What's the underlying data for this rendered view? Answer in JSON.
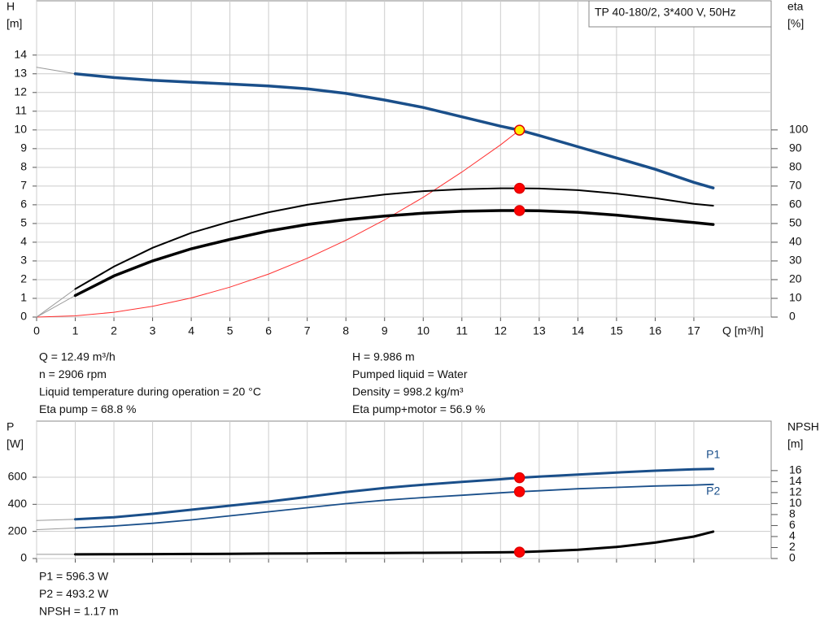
{
  "chart_data": [
    {
      "type": "line",
      "title": "TP 40-180/2, 3*400 V, 50Hz",
      "y_label": "H",
      "y_unit": "[m]",
      "y2_label": "eta",
      "y2_unit": "[%]",
      "x_label": "Q [m³/h]",
      "xlim": [
        0,
        19
      ],
      "xticks": [
        0,
        1,
        2,
        3,
        4,
        5,
        6,
        7,
        8,
        9,
        10,
        11,
        12,
        13,
        14,
        15,
        16,
        17
      ],
      "ylim": [
        0,
        16.9
      ],
      "yticks": [
        0,
        1,
        2,
        3,
        4,
        5,
        6,
        7,
        8,
        9,
        10,
        11,
        12,
        13,
        14
      ],
      "y2lim": [
        0,
        169
      ],
      "y2ticks": [
        0,
        10,
        20,
        30,
        40,
        50,
        60,
        70,
        80,
        90,
        100
      ],
      "grid": true,
      "xtick_labels": true,
      "operating_q": 12.49,
      "series": [
        {
          "color": "#999999",
          "width": 1,
          "x": [
            0,
            1
          ],
          "values": [
            13.35,
            13.0
          ]
        },
        {
          "color": "#1a4f8a",
          "width": 3.5,
          "marker_color": "#ffee00",
          "x": [
            1,
            2,
            3,
            4,
            5,
            6,
            7,
            8,
            9,
            10,
            11,
            12,
            12.49,
            13,
            14,
            15,
            16,
            17,
            17.5
          ],
          "values": [
            13.0,
            12.8,
            12.65,
            12.55,
            12.45,
            12.35,
            12.2,
            11.95,
            11.6,
            11.2,
            10.7,
            10.2,
            9.986,
            9.7,
            9.1,
            8.5,
            7.9,
            7.2,
            6.9
          ]
        },
        {
          "color": "#ff3030",
          "width": 1,
          "x": [
            0,
            1,
            2,
            3,
            4,
            5,
            6,
            7,
            8,
            9,
            10,
            11,
            12,
            12.49
          ],
          "values": [
            0,
            0.064,
            0.256,
            0.576,
            1.02,
            1.6,
            2.3,
            3.14,
            4.1,
            5.19,
            6.4,
            7.75,
            9.2,
            9.986
          ]
        },
        {
          "color": "#999999",
          "width": 1,
          "axis": "y2",
          "x": [
            0,
            1
          ],
          "values": [
            0,
            15
          ]
        },
        {
          "color": "#999999",
          "width": 1,
          "axis": "y2",
          "x": [
            0,
            1
          ],
          "values": [
            0,
            11.5
          ]
        },
        {
          "color": "#000000",
          "width": 2,
          "axis": "y2",
          "marker_color": "#ff0000",
          "x": [
            1,
            2,
            3,
            4,
            5,
            6,
            7,
            8,
            9,
            10,
            11,
            12,
            12.49,
            13,
            14,
            15,
            16,
            17,
            17.5
          ],
          "values": [
            15,
            27,
            37,
            45,
            51,
            56,
            60,
            63,
            65.5,
            67.3,
            68.3,
            68.8,
            68.8,
            68.7,
            67.8,
            66,
            63.5,
            60.5,
            59.5
          ]
        },
        {
          "color": "#000000",
          "width": 3.5,
          "axis": "y2",
          "marker_color": "#ff0000",
          "x": [
            1,
            2,
            3,
            4,
            5,
            6,
            7,
            8,
            9,
            10,
            11,
            12,
            12.49,
            13,
            14,
            15,
            16,
            17,
            17.5
          ],
          "values": [
            11.5,
            22,
            30,
            36.5,
            41.5,
            46,
            49.5,
            52,
            54,
            55.5,
            56.5,
            56.9,
            56.9,
            56.8,
            56,
            54.5,
            52.5,
            50.5,
            49.5
          ]
        }
      ]
    },
    {
      "type": "line",
      "y_label": "P",
      "y_unit": "[W]",
      "y2_label": "NPSH",
      "y2_unit": "[m]",
      "xlim": [
        0,
        19
      ],
      "xticks": [
        0,
        1,
        2,
        3,
        4,
        5,
        6,
        7,
        8,
        9,
        10,
        11,
        12,
        13,
        14,
        15,
        16,
        17
      ],
      "ylim": [
        0,
        1014
      ],
      "yticks": [
        0,
        200,
        400,
        600
      ],
      "y2lim": [
        0,
        25
      ],
      "y2ticks": [
        0,
        2,
        4,
        6,
        8,
        10,
        12,
        14,
        16
      ],
      "grid": true,
      "xtick_labels": false,
      "operating_q": 12.49,
      "series": [
        {
          "color": "#999999",
          "width": 1,
          "x": [
            0,
            1
          ],
          "values": [
            280,
            290
          ]
        },
        {
          "color": "#1a4f8a",
          "width": 3,
          "marker_color": "#ff0000",
          "x": [
            1,
            2,
            3,
            4,
            5,
            6,
            7,
            8,
            9,
            10,
            11,
            12,
            12.49,
            13,
            14,
            15,
            16,
            17,
            17.5
          ],
          "values": [
            290,
            305,
            330,
            360,
            390,
            420,
            455,
            490,
            520,
            545,
            565,
            585,
            596.3,
            605,
            620,
            635,
            648,
            658,
            662
          ]
        },
        {
          "color": "#999999",
          "width": 1,
          "x": [
            0,
            1
          ],
          "values": [
            213,
            225
          ]
        },
        {
          "color": "#1a4f8a",
          "width": 1.8,
          "marker_color": "#ff0000",
          "x": [
            1,
            2,
            3,
            4,
            5,
            6,
            7,
            8,
            9,
            10,
            11,
            12,
            12.49,
            13,
            14,
            15,
            16,
            17,
            17.5
          ],
          "values": [
            225,
            240,
            260,
            285,
            315,
            345,
            375,
            405,
            430,
            450,
            467,
            485,
            493.2,
            500,
            515,
            525,
            535,
            542,
            547
          ]
        },
        {
          "color": "#999999",
          "width": 1,
          "axis": "y2",
          "x": [
            0,
            1
          ],
          "values": [
            0.75,
            0.75
          ]
        },
        {
          "color": "#000000",
          "width": 3,
          "axis": "y2",
          "marker_color": "#ff0000",
          "x": [
            1,
            2,
            3,
            4,
            5,
            6,
            7,
            8,
            9,
            10,
            11,
            12,
            12.49,
            13,
            14,
            15,
            16,
            17,
            17.5
          ],
          "values": [
            0.75,
            0.78,
            0.8,
            0.83,
            0.86,
            0.9,
            0.93,
            0.97,
            1.0,
            1.04,
            1.08,
            1.13,
            1.17,
            1.3,
            1.6,
            2.1,
            2.9,
            4.0,
            4.9
          ]
        }
      ],
      "annotations": [
        {
          "text": "P1",
          "x": 17.5,
          "y": 762
        },
        {
          "text": "P2",
          "x": 17.5,
          "y": 492
        }
      ]
    }
  ],
  "info_top_left": [
    "Q = 12.49 m³/h",
    "n = 2906 rpm",
    "Liquid temperature during operation = 20 °C",
    "Eta pump = 68.8 %"
  ],
  "info_top_right": [
    "H = 9.986 m",
    "Pumped liquid = Water",
    "Density = 998.2 kg/m³",
    "Eta pump+motor = 56.9 %"
  ],
  "info_bottom": [
    "P1 = 596.3 W",
    "P2 = 493.2 W",
    "NPSH = 1.17 m"
  ]
}
